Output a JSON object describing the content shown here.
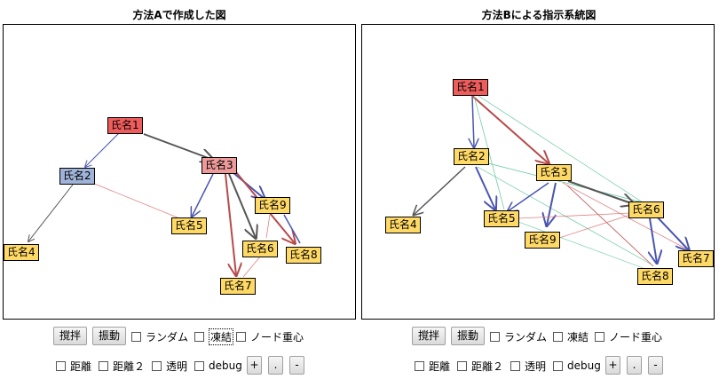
{
  "panels": [
    {
      "title": "方法Aで作成した図",
      "nodes": [
        {
          "id": "n1",
          "label": "氏名1",
          "color": "#ee5c5c"
        },
        {
          "id": "n2",
          "label": "氏名2",
          "color": "#9fb3d9"
        },
        {
          "id": "n3",
          "label": "氏名3",
          "color": "#ee9a9a"
        },
        {
          "id": "n4",
          "label": "氏名4",
          "color": "#ffd966"
        },
        {
          "id": "n5",
          "label": "氏名5",
          "color": "#ffd966"
        },
        {
          "id": "n6",
          "label": "氏名6",
          "color": "#ffd966"
        },
        {
          "id": "n7",
          "label": "氏名7",
          "color": "#ffd966"
        },
        {
          "id": "n8",
          "label": "氏名8",
          "color": "#ffd966"
        },
        {
          "id": "n9",
          "label": "氏名9",
          "color": "#ffd966"
        }
      ]
    },
    {
      "title": "方法Bによる指示系統図",
      "nodes": [
        {
          "id": "n1",
          "label": "氏名1",
          "color": "#ee5c5c"
        },
        {
          "id": "n2",
          "label": "氏名2",
          "color": "#ffd966"
        },
        {
          "id": "n3",
          "label": "氏名3",
          "color": "#ffd966"
        },
        {
          "id": "n4",
          "label": "氏名4",
          "color": "#ffd966"
        },
        {
          "id": "n5",
          "label": "氏名5",
          "color": "#ffd966"
        },
        {
          "id": "n6",
          "label": "氏名6",
          "color": "#ffd966"
        },
        {
          "id": "n7",
          "label": "氏名7",
          "color": "#ffd966"
        },
        {
          "id": "n8",
          "label": "氏名8",
          "color": "#ffd966"
        },
        {
          "id": "n9",
          "label": "氏名9",
          "color": "#ffd966"
        }
      ]
    }
  ],
  "controls": {
    "stir": "撹拌",
    "vibrate": "振動",
    "random": "ランダム",
    "freeze": "凍結",
    "node_centroid": "ノード重心",
    "distance": "距離",
    "distance2": "距離２",
    "transparent": "透明",
    "debug": "debug",
    "plus": "+",
    "dot": ".",
    "minus": "-"
  },
  "edge_colors": {
    "gray": "#555555",
    "red": "#b84a4a",
    "blue": "#4a55b0",
    "thin_red": "#e08080",
    "thin_green": "#5fc79a"
  }
}
